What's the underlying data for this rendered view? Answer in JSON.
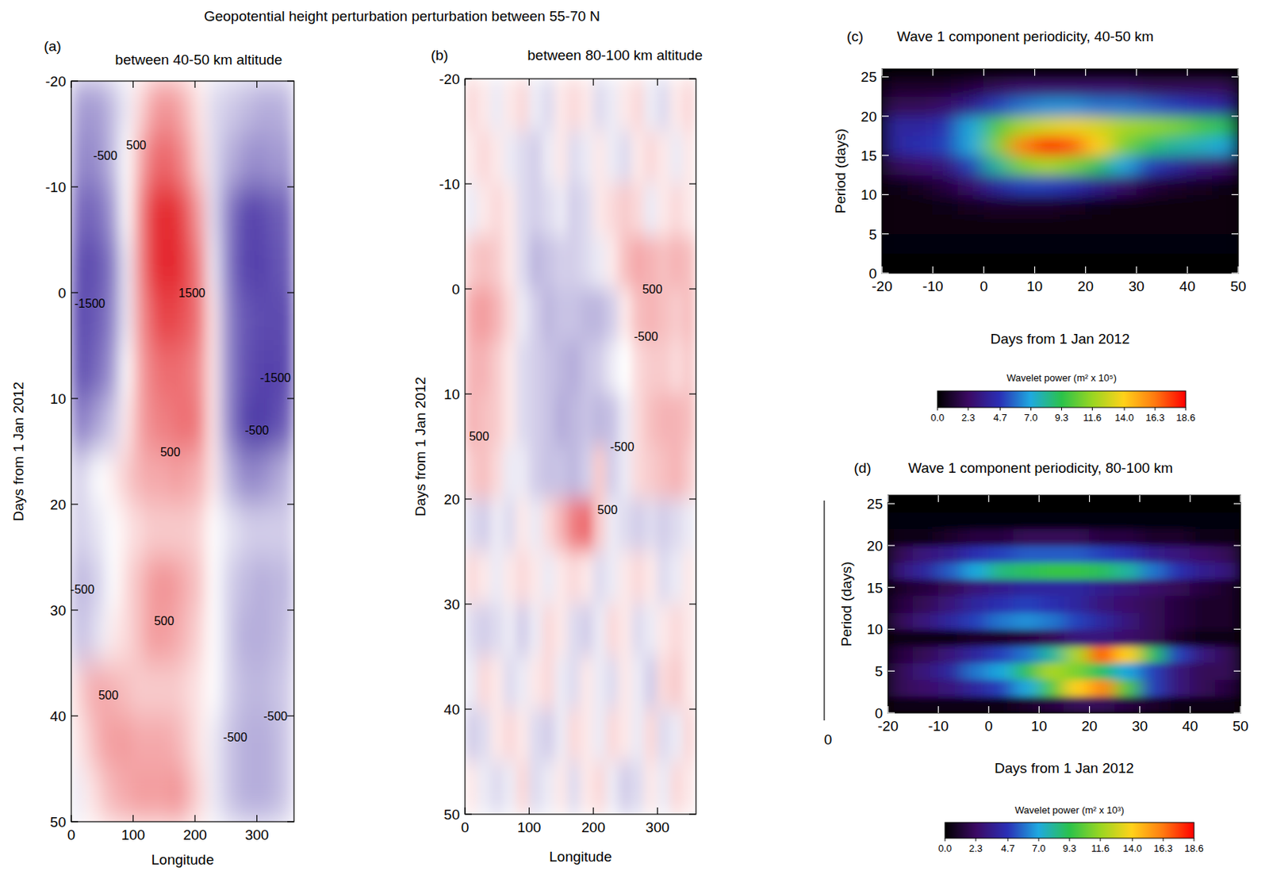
{
  "figure_title": "Geopotential height perturbation perturbation between 55-70 N",
  "stray_label": "0",
  "chart_data": [
    {
      "type": "heatmap",
      "panel": "(a)",
      "title": "between 40-50 km altitude",
      "x_label": "Longitude",
      "y_label": "Days from 1 Jan 2012",
      "xlim": [
        0,
        360
      ],
      "ylim": [
        50,
        -20
      ],
      "xticks": [
        0,
        100,
        200,
        300
      ],
      "yticks": [
        -20,
        -10,
        0,
        10,
        20,
        30,
        40,
        50
      ],
      "zlim": [
        -2000,
        2000
      ],
      "x": [
        10,
        30,
        50,
        70,
        90,
        110,
        130,
        150,
        170,
        190,
        210,
        230,
        250,
        270,
        290,
        310,
        330,
        350
      ],
      "y": [
        -17.5,
        -12.5,
        -7.5,
        -2.5,
        2.5,
        7.5,
        12.5,
        17.5,
        22.5,
        27.5,
        32.5,
        37.5,
        42.5,
        47.5
      ],
      "z": [
        [
          -700,
          -800,
          -700,
          -400,
          -100,
          200,
          600,
          800,
          700,
          400,
          100,
          -200,
          -300,
          -400,
          -500,
          -600,
          -600,
          -500
        ],
        [
          -900,
          -1000,
          -800,
          -400,
          0,
          500,
          1100,
          1300,
          1100,
          700,
          200,
          -200,
          -500,
          -700,
          -900,
          -900,
          -800,
          -800
        ],
        [
          -1300,
          -1400,
          -1200,
          -700,
          0,
          800,
          1700,
          2100,
          1900,
          1300,
          600,
          -200,
          -900,
          -1500,
          -1800,
          -1700,
          -1500,
          -1400
        ],
        [
          -1600,
          -1700,
          -1500,
          -1000,
          -100,
          800,
          1700,
          2200,
          2000,
          1500,
          900,
          -100,
          -900,
          -1600,
          -1800,
          -1800,
          -1600,
          -1500
        ],
        [
          -1700,
          -1600,
          -1400,
          -900,
          -100,
          700,
          1300,
          1700,
          1600,
          1400,
          1000,
          100,
          -800,
          -1400,
          -1600,
          -1700,
          -1700,
          -1700
        ],
        [
          -1600,
          -1500,
          -1200,
          -700,
          0,
          600,
          1000,
          1200,
          1200,
          1100,
          800,
          100,
          -800,
          -1400,
          -1700,
          -1800,
          -1800,
          -1700
        ],
        [
          -1100,
          -900,
          -600,
          -300,
          100,
          600,
          900,
          1000,
          1100,
          1200,
          900,
          100,
          -800,
          -1500,
          -1900,
          -1900,
          -1700,
          -1400
        ],
        [
          -300,
          -100,
          0,
          100,
          300,
          500,
          600,
          600,
          700,
          600,
          500,
          100,
          -400,
          -800,
          -1000,
          -900,
          -700,
          -500
        ],
        [
          -300,
          -200,
          -100,
          0,
          100,
          200,
          300,
          300,
          300,
          300,
          200,
          0,
          -100,
          -200,
          -300,
          -300,
          -300,
          -300
        ],
        [
          -500,
          -400,
          -200,
          0,
          200,
          400,
          700,
          800,
          700,
          500,
          300,
          0,
          -200,
          -400,
          -500,
          -600,
          -500,
          -500
        ],
        [
          -400,
          -300,
          -100,
          100,
          200,
          400,
          700,
          700,
          600,
          400,
          200,
          0,
          -200,
          -500,
          -600,
          -600,
          -500,
          -400
        ],
        [
          200,
          500,
          600,
          500,
          400,
          300,
          300,
          300,
          300,
          200,
          100,
          0,
          -200,
          -400,
          -500,
          -500,
          -400,
          -300
        ],
        [
          100,
          300,
          600,
          700,
          700,
          600,
          600,
          600,
          500,
          300,
          100,
          -100,
          -300,
          -500,
          -600,
          -600,
          -500,
          -300
        ],
        [
          -100,
          100,
          300,
          500,
          600,
          700,
          700,
          700,
          800,
          500,
          200,
          -100,
          -300,
          -500,
          -600,
          -600,
          -500,
          -300
        ]
      ],
      "annotations": [
        {
          "text": "-500",
          "x": 55,
          "y": -13
        },
        {
          "text": "500",
          "x": 105,
          "y": -14
        },
        {
          "text": "1500",
          "x": 195,
          "y": 0
        },
        {
          "text": "-1500",
          "x": 30,
          "y": 1
        },
        {
          "text": "-1500",
          "x": 330,
          "y": 8
        },
        {
          "text": "-500",
          "x": 300,
          "y": 13
        },
        {
          "text": "500",
          "x": 160,
          "y": 15
        },
        {
          "text": "-500",
          "x": 18,
          "y": 28
        },
        {
          "text": "500",
          "x": 150,
          "y": 31
        },
        {
          "text": "500",
          "x": 60,
          "y": 38
        },
        {
          "text": "-500",
          "x": 265,
          "y": 42
        },
        {
          "text": "-500",
          "x": 330,
          "y": 40
        }
      ]
    },
    {
      "type": "heatmap",
      "panel": "(b)",
      "title": "between 80-100 km altitude",
      "x_label": "Longitude",
      "y_label": "Days from 1 Jan 2012",
      "xlim": [
        0,
        360
      ],
      "ylim": [
        50,
        -20
      ],
      "xticks": [
        0,
        100,
        200,
        300
      ],
      "yticks": [
        -20,
        -10,
        0,
        10,
        20,
        30,
        40,
        50
      ],
      "zlim": [
        -2000,
        2000
      ],
      "x": [
        10,
        30,
        50,
        70,
        90,
        110,
        130,
        150,
        170,
        190,
        210,
        230,
        250,
        270,
        290,
        310,
        330,
        350
      ],
      "y": [
        -17.5,
        -12.5,
        -7.5,
        -2.5,
        2.5,
        7.5,
        12.5,
        17.5,
        22.5,
        27.5,
        32.5,
        37.5,
        42.5,
        47.5
      ],
      "z": [
        [
          200,
          100,
          -100,
          100,
          200,
          -100,
          -200,
          100,
          200,
          100,
          -200,
          -100,
          100,
          200,
          -100,
          -200,
          100,
          200
        ],
        [
          100,
          200,
          100,
          -100,
          -200,
          -300,
          -100,
          100,
          -200,
          -100,
          100,
          -100,
          -200,
          100,
          200,
          100,
          -100,
          100
        ],
        [
          -100,
          100,
          200,
          100,
          -200,
          -300,
          -200,
          -100,
          -300,
          -200,
          100,
          200,
          300,
          200,
          -100,
          100,
          200,
          100
        ],
        [
          300,
          400,
          300,
          100,
          -200,
          -500,
          -400,
          -300,
          -300,
          -200,
          -100,
          100,
          400,
          600,
          500,
          400,
          500,
          400
        ],
        [
          600,
          700,
          500,
          200,
          -100,
          -300,
          -500,
          -400,
          -400,
          -500,
          -500,
          -300,
          100,
          400,
          500,
          400,
          300,
          400
        ],
        [
          500,
          500,
          300,
          100,
          -200,
          -300,
          -400,
          -500,
          -600,
          -400,
          -300,
          -100,
          0,
          200,
          300,
          300,
          200,
          300
        ],
        [
          500,
          400,
          300,
          100,
          -200,
          -300,
          -400,
          -600,
          -500,
          -400,
          -500,
          -400,
          -100,
          200,
          400,
          500,
          500,
          400
        ],
        [
          300,
          400,
          200,
          -100,
          -100,
          -300,
          -400,
          -400,
          -500,
          -300,
          300,
          -300,
          -100,
          200,
          300,
          400,
          500,
          300
        ],
        [
          -200,
          -300,
          -100,
          -200,
          100,
          -100,
          200,
          500,
          1000,
          1200,
          300,
          -100,
          -200,
          -300,
          -200,
          -300,
          -200,
          -100
        ],
        [
          200,
          100,
          -100,
          100,
          200,
          100,
          -100,
          100,
          200,
          100,
          -200,
          -100,
          100,
          200,
          100,
          -200,
          -100,
          100
        ],
        [
          -200,
          -300,
          -200,
          -100,
          -300,
          -100,
          200,
          100,
          -200,
          -300,
          -100,
          200,
          100,
          -200,
          -100,
          100,
          200,
          100
        ],
        [
          -100,
          200,
          100,
          -200,
          -100,
          100,
          200,
          -100,
          -200,
          100,
          -100,
          -200,
          100,
          -100,
          -300,
          200,
          300,
          100
        ],
        [
          -300,
          -200,
          100,
          200,
          100,
          -200,
          -300,
          -100,
          200,
          100,
          -100,
          200,
          100,
          -100,
          200,
          -200,
          -100,
          200
        ],
        [
          100,
          -100,
          -200,
          -100,
          200,
          -200,
          -100,
          100,
          -200,
          100,
          200,
          -100,
          -300,
          -200,
          100,
          -100,
          200,
          100
        ]
      ],
      "annotations": [
        {
          "text": "500",
          "x": 292,
          "y": 0
        },
        {
          "text": "-500",
          "x": 282,
          "y": 4.5
        },
        {
          "text": "500",
          "x": 22,
          "y": 14
        },
        {
          "text": "-500",
          "x": 245,
          "y": 15
        },
        {
          "text": "500",
          "x": 222,
          "y": 21
        }
      ]
    },
    {
      "type": "heatmap",
      "panel": "(c)",
      "title": "Wave 1 component periodicity, 40-50 km",
      "x_label": "Days from 1 Jan 2012",
      "y_label": "Period (days)",
      "xlim": [
        -20,
        50
      ],
      "ylim": [
        0,
        26
      ],
      "xticks": [
        -20,
        -10,
        0,
        10,
        20,
        30,
        40,
        50
      ],
      "yticks": [
        0,
        5,
        10,
        15,
        20,
        25
      ],
      "zlim": [
        0,
        18.6
      ],
      "colorbar_label": "Wavelet power (m² x 10⁵)",
      "colorbar_ticks": [
        {
          "value": 0,
          "label": "0.0"
        },
        2.3,
        4.7,
        {
          "value": 7,
          "label": "7.0"
        },
        9.3,
        11.6,
        {
          "value": 14,
          "label": "14.0"
        },
        16.3,
        18.6
      ],
      "x": [
        -17.5,
        -12.5,
        -7.5,
        -2.5,
        2.5,
        7.5,
        12.5,
        17.5,
        22.5,
        27.5,
        32.5,
        37.5,
        42.5,
        47.5
      ],
      "y": [
        1.25,
        3.75,
        6.25,
        8.75,
        11.25,
        13.75,
        16.25,
        18.75,
        21.25,
        23.75
      ],
      "z": [
        [
          0,
          0,
          0,
          0,
          0,
          0,
          0,
          0,
          0,
          0,
          0,
          0,
          0,
          0
        ],
        [
          0.2,
          0.2,
          0.2,
          0.2,
          0.2,
          0.2,
          0.2,
          0.2,
          0.2,
          0.2,
          0.2,
          0.2,
          0.2,
          0.2
        ],
        [
          0.3,
          0.3,
          0.3,
          0.3,
          0.3,
          0.3,
          0.3,
          0.3,
          0.3,
          0.3,
          0.3,
          0.3,
          0.3,
          0.3
        ],
        [
          0.3,
          0.3,
          0.5,
          0.8,
          1,
          1,
          1,
          0.8,
          0.5,
          0.3,
          0.3,
          0.3,
          0.3,
          0.3
        ],
        [
          0.5,
          0.8,
          1.5,
          2.5,
          4,
          5,
          5,
          4.5,
          3.5,
          2.5,
          1.5,
          1,
          0.8,
          0.5
        ],
        [
          2,
          2.5,
          3,
          5,
          8,
          11,
          12,
          11,
          9,
          7,
          5,
          4,
          3,
          2.5
        ],
        [
          4,
          4.5,
          5,
          7,
          11,
          16,
          18.4,
          17,
          14,
          11,
          9,
          8,
          7.5,
          7
        ],
        [
          4,
          4,
          4.5,
          7,
          10,
          12,
          13,
          13.5,
          13,
          12,
          11.5,
          11,
          10,
          9
        ],
        [
          2,
          2,
          2.5,
          3.5,
          5,
          6,
          6.5,
          6.5,
          6,
          6,
          5.5,
          5,
          4.5,
          4
        ],
        [
          1,
          1,
          1,
          1.5,
          2,
          2.5,
          2.5,
          2.5,
          2.5,
          2.5,
          2,
          2,
          2,
          2
        ]
      ]
    },
    {
      "type": "heatmap",
      "panel": "(d)",
      "title": "Wave 1 component periodicity, 80-100 km",
      "x_label": "Days from 1 Jan 2012",
      "y_label": "Period (days)",
      "xlim": [
        -20,
        50
      ],
      "ylim": [
        0,
        26
      ],
      "xticks": [
        -20,
        -10,
        0,
        10,
        20,
        30,
        40,
        50
      ],
      "yticks": [
        0,
        5,
        10,
        15,
        20,
        25
      ],
      "zlim": [
        0,
        18.6
      ],
      "colorbar_label": "Wavelet power (m² x 10³)",
      "colorbar_ticks": [
        {
          "value": 0,
          "label": "0.0"
        },
        2.3,
        4.7,
        {
          "value": 7,
          "label": "7.0"
        },
        9.3,
        11.6,
        {
          "value": 14,
          "label": "14.0"
        },
        16.3,
        18.6
      ],
      "x": [
        -17.5,
        -12.5,
        -7.5,
        -2.5,
        2.5,
        7.5,
        12.5,
        17.5,
        22.5,
        27.5,
        32.5,
        37.5,
        42.5,
        47.5
      ],
      "y": [
        1,
        3,
        5,
        7,
        9,
        11,
        13,
        15,
        17,
        19,
        21,
        23,
        25
      ],
      "z": [
        [
          0.5,
          0.5,
          0.5,
          0.5,
          0.5,
          1,
          1.5,
          2,
          2,
          1.5,
          1,
          0.5,
          0.5,
          0.5
        ],
        [
          2,
          2.5,
          3,
          4,
          5,
          7,
          10,
          14,
          16,
          10,
          5,
          3,
          2,
          1.5
        ],
        [
          2,
          3,
          4,
          6,
          7,
          9,
          12,
          11,
          9,
          7,
          5,
          3,
          2,
          2
        ],
        [
          1.5,
          2,
          3,
          4,
          5,
          6,
          8,
          12,
          17,
          14,
          9,
          5,
          3,
          2
        ],
        [
          0.5,
          0.5,
          0.5,
          1,
          1,
          1.5,
          2,
          3,
          3,
          2.5,
          2,
          1,
          0.5,
          0.5
        ],
        [
          2,
          3,
          4,
          5,
          6,
          6.5,
          6,
          5,
          4,
          3,
          2,
          1.5,
          1,
          1
        ],
        [
          1.5,
          2,
          3,
          4,
          4.5,
          5,
          4.5,
          4,
          3,
          2.5,
          2,
          1.5,
          1,
          1
        ],
        [
          1,
          1.5,
          2,
          3,
          3.5,
          4,
          4,
          4,
          3.5,
          3,
          2.5,
          2,
          1.5,
          1
        ],
        [
          3,
          4,
          5.5,
          7,
          8.5,
          9,
          9.5,
          9.5,
          9,
          8,
          6,
          4.5,
          3.5,
          3
        ],
        [
          2,
          3,
          3.5,
          4.5,
          5,
          5.5,
          5.5,
          5.5,
          5,
          4.5,
          3.5,
          3,
          2.5,
          2
        ],
        [
          0.5,
          0.5,
          1,
          1.5,
          1.5,
          2,
          2,
          2,
          1.5,
          1.5,
          1,
          1,
          0.5,
          0.5
        ],
        [
          0.2,
          0.2,
          0.2,
          0.2,
          0.2,
          0.2,
          0.2,
          0.2,
          0.2,
          0.2,
          0.2,
          0.2,
          0.2,
          0.2
        ],
        [
          0.1,
          0.1,
          0.1,
          0.1,
          0.1,
          0.1,
          0.1,
          0.1,
          0.1,
          0.1,
          0.1,
          0.1,
          0.1,
          0.1
        ]
      ]
    }
  ]
}
